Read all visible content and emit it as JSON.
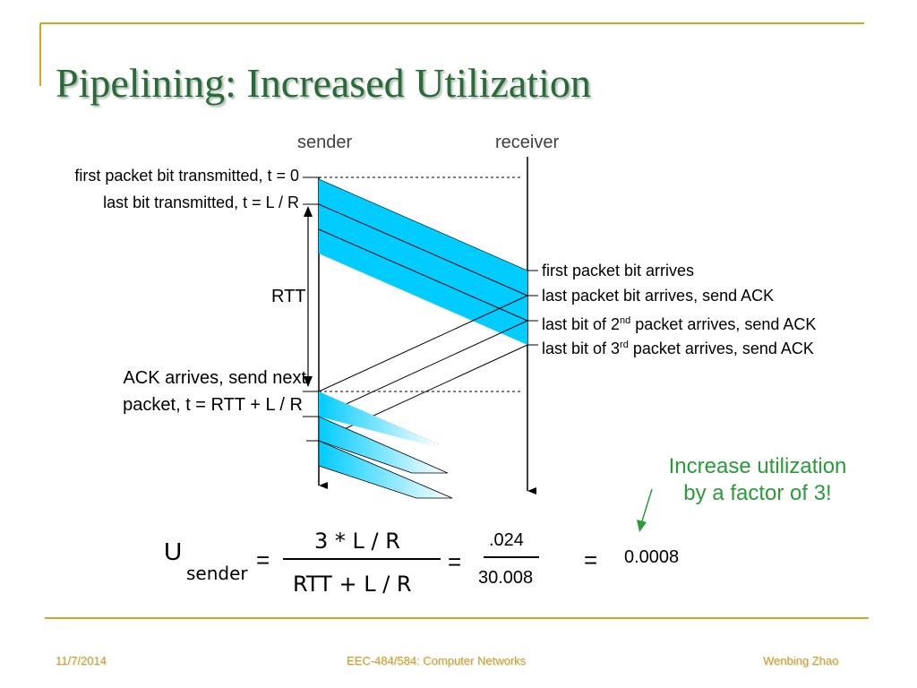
{
  "slide": {
    "title": "Pipelining: Increased Utilization"
  },
  "diagram": {
    "sender_label": "sender",
    "receiver_label": "receiver",
    "left_labels": {
      "first_bit": "first packet bit transmitted, t = 0",
      "last_bit": "last bit transmitted, t = L / R",
      "rtt": "RTT",
      "ack_line1": "ACK arrives, send next",
      "ack_line2": "packet, t = RTT + L / R"
    },
    "right_labels": {
      "first_arrives": "first packet bit arrives",
      "last_arrives": "last packet bit arrives, send ACK",
      "second_pre": "last bit of 2",
      "second_sup": "nd",
      "second_post": " packet arrives, send ACK",
      "third_pre": "last bit of 3",
      "third_sup": "rd",
      "third_post": " packet arrives, send ACK"
    },
    "note_line1": "Increase utilization",
    "note_line2": "by a factor of 3!",
    "colors": {
      "packet": "#00ccff",
      "title": "#2a6a38",
      "note": "#2a9a3a",
      "rule": "#d4a520"
    }
  },
  "formula": {
    "u": "U",
    "sub": "sender",
    "eq1": "=",
    "numerator": "3 * L / R",
    "denominator": "RTT + L / R",
    "eq2": "=",
    "num2": ".024",
    "den2": "30.008",
    "eq3": "=",
    "result": "0.0008"
  },
  "footer": {
    "date": "11/7/2014",
    "course": "EEC-484/584: Computer Networks",
    "author": "Wenbing Zhao"
  }
}
